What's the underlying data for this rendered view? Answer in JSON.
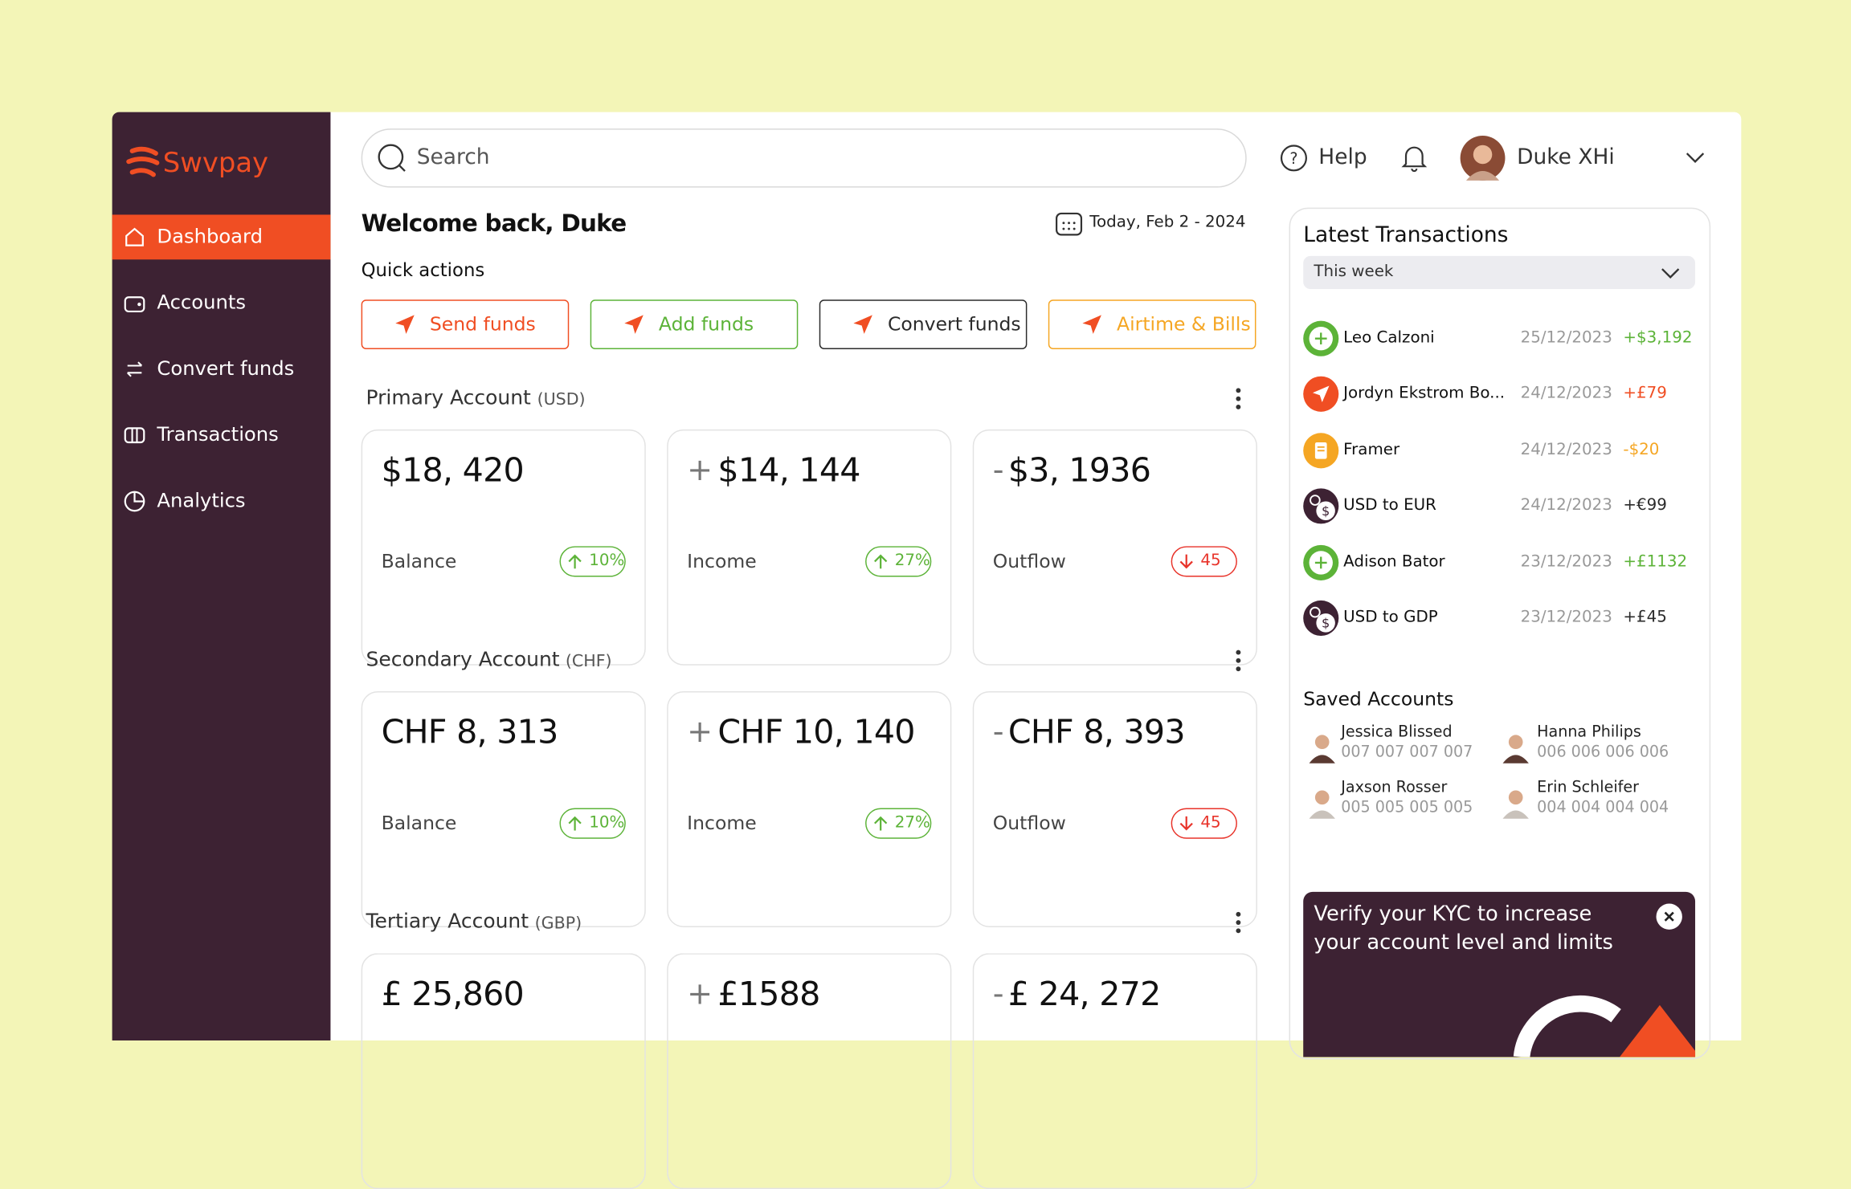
{
  "brand": "Swvpay",
  "nav": [
    "Dashboard",
    "Accounts",
    "Convert funds",
    "Transactions",
    "Analytics"
  ],
  "search": "Search",
  "help": "Help",
  "user": "Duke XHi",
  "welcome": "Welcome back, Duke",
  "date": "Today, Feb 2 - 2024",
  "quick_actions": {
    "title": "Quick actions",
    "buttons": [
      {
        "label": "Send funds",
        "color": "#f04e23"
      },
      {
        "label": "Add funds",
        "color": "#5cb338"
      },
      {
        "label": "Convert funds",
        "color": "#2b2b2b"
      },
      {
        "label": "Airtime & Bills",
        "color": "#f5a623"
      }
    ]
  },
  "accounts": [
    {
      "title": "Primary Account",
      "currency": "(USD)",
      "cards": [
        {
          "sign": null,
          "amount": "$18, 420",
          "label": "Balance",
          "badge": "10%",
          "badge_color": "#5cb338"
        },
        {
          "sign": "+",
          "amount": "$14, 144",
          "label": "Income",
          "badge": "27%",
          "badge_color": "#5cb338"
        },
        {
          "sign": "-",
          "amount": "$3, 1936",
          "label": "Outflow",
          "badge": "45",
          "badge_color": "#e8332a"
        }
      ]
    },
    {
      "title": "Secondary Account",
      "currency": "(CHF)",
      "cards": [
        {
          "sign": null,
          "amount": "CHF 8, 313",
          "label": "Balance",
          "badge": "10%",
          "badge_color": "#5cb338"
        },
        {
          "sign": "+",
          "amount": "CHF 10, 140",
          "label": "Income",
          "badge": "27%",
          "badge_color": "#5cb338"
        },
        {
          "sign": "-",
          "amount": "CHF 8, 393",
          "label": "Outflow",
          "badge": "45",
          "badge_color": "#e8332a"
        }
      ]
    },
    {
      "title": "Tertiary Account",
      "currency": "(GBP)",
      "cards": [
        {
          "sign": null,
          "amount": "£ 25,860"
        },
        {
          "sign": "+",
          "amount": "£1588"
        },
        {
          "sign": "-",
          "amount": "£ 24, 272"
        }
      ]
    }
  ],
  "latest": {
    "title": "Latest Transactions",
    "filter": "This week",
    "rows": [
      {
        "name": "Leo Calzoni",
        "date": "25/12/2023",
        "amount": "+$3,192",
        "color": "#5cb338"
      },
      {
        "name": "Jordyn Ekstrom Bo...",
        "date": "24/12/2023",
        "amount": "+£79",
        "color": "#f04e23"
      },
      {
        "name": "Framer",
        "date": "24/12/2023",
        "amount": "-$20",
        "color": "#f5a623"
      },
      {
        "name": "USD to EUR",
        "date": "24/12/2023",
        "amount": "+€99",
        "color": "#2b2b2b"
      },
      {
        "name": "Adison Bator",
        "date": "23/12/2023",
        "amount": "+£1132",
        "color": "#5cb338"
      },
      {
        "name": "USD to GDP",
        "date": "23/12/2023",
        "amount": "+£45",
        "color": "#2b2b2b"
      }
    ]
  },
  "saved": {
    "title": "Saved Accounts",
    "items": [
      {
        "name": "Jessica Blissed",
        "number": "007 007 007 007"
      },
      {
        "name": "Hanna Philips",
        "number": "006 006 006 006"
      },
      {
        "name": "Jaxson Rosser",
        "number": "005 005 005 005"
      },
      {
        "name": "Erin Schleifer",
        "number": "004 004 004 004"
      }
    ]
  },
  "kyc": {
    "line1": "Verify your KYC to increase",
    "line2": "your account level and limits"
  }
}
